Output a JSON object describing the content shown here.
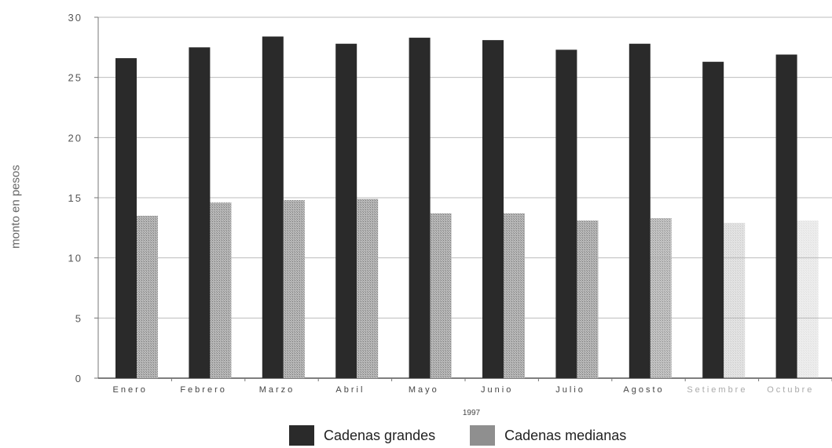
{
  "chart_data": {
    "type": "bar",
    "title": "",
    "xlabel": "1997",
    "ylabel": "monto en pesos",
    "ylim": [
      0,
      30
    ],
    "yticks": [
      "0",
      "5",
      "10",
      "15",
      "20",
      "25",
      "30"
    ],
    "grid": true,
    "legend_position": "bottom",
    "categories": [
      "Enero",
      "Febrero",
      "Marzo",
      "Abril",
      "Mayo",
      "Junio",
      "Julio",
      "Agosto",
      "Setiembre",
      "Octubre"
    ],
    "series": [
      {
        "name": "Cadenas grandes",
        "color": "#2a2a2a",
        "values": [
          26.6,
          27.5,
          28.4,
          27.8,
          28.3,
          28.1,
          27.3,
          27.8,
          26.3,
          26.9
        ]
      },
      {
        "name": "Cadenas medianas",
        "color": "#a6a6a6",
        "values": [
          13.5,
          14.6,
          14.8,
          14.9,
          13.7,
          13.7,
          13.1,
          13.3,
          12.9,
          13.1
        ]
      }
    ]
  }
}
